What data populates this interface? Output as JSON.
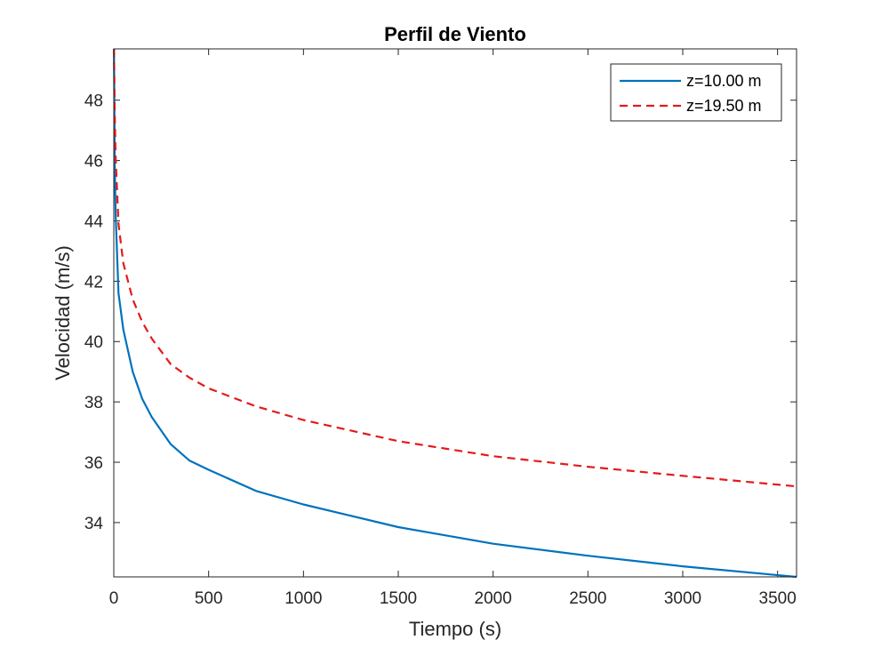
{
  "chart_data": {
    "type": "line",
    "title": "Perfil de Viento",
    "xlabel": "Tiempo (s)",
    "ylabel": "Velocidad (m/s)",
    "xlim": [
      0,
      3600
    ],
    "ylim": [
      32.2,
      49.7
    ],
    "xticks": [
      0,
      500,
      1000,
      1500,
      2000,
      2500,
      3000,
      3500
    ],
    "xtick_labels": [
      "0",
      "500",
      "1000",
      "1500",
      "2000",
      "2500",
      "3000",
      "3500"
    ],
    "yticks": [
      34,
      36,
      38,
      40,
      42,
      44,
      46,
      48
    ],
    "ytick_labels": [
      "34",
      "36",
      "38",
      "40",
      "42",
      "44",
      "46",
      "48"
    ],
    "grid": false,
    "legend_position": "top-right",
    "x": [
      1,
      5,
      10,
      25,
      50,
      100,
      150,
      200,
      300,
      400,
      500,
      750,
      1000,
      1500,
      2000,
      2500,
      3000,
      3600
    ],
    "series": [
      {
        "name": "z=10.00 m",
        "color": "#0072BD",
        "style": "solid",
        "values": [
          49.7,
          45.8,
          44.2,
          41.6,
          40.4,
          39.0,
          38.1,
          37.5,
          36.6,
          36.05,
          35.75,
          35.05,
          34.6,
          33.85,
          33.3,
          32.9,
          32.55,
          32.2
        ]
      },
      {
        "name": "z=19.50 m",
        "color": "#E41A1C",
        "style": "dashed",
        "values": [
          49.7,
          47.5,
          46.1,
          43.9,
          42.6,
          41.4,
          40.65,
          40.1,
          39.25,
          38.8,
          38.45,
          37.85,
          37.4,
          36.7,
          36.2,
          35.85,
          35.55,
          35.2
        ]
      }
    ]
  }
}
